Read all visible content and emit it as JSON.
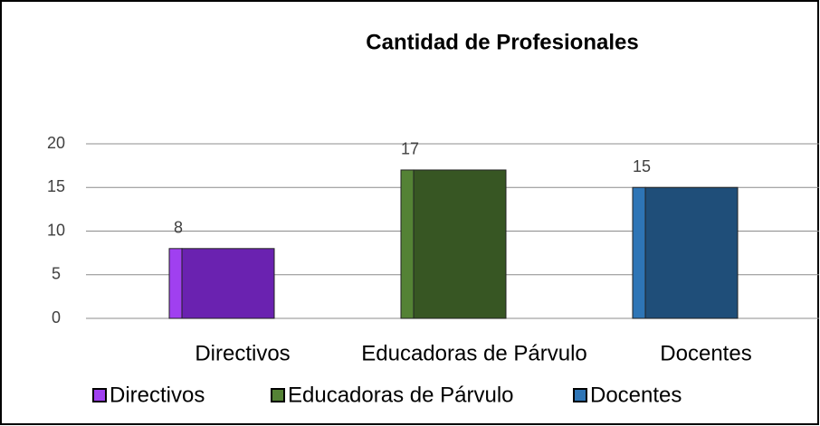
{
  "chart_data": {
    "type": "bar",
    "title": "Cantidad de Profesionales",
    "categories": [
      "Directivos",
      "Educadoras de Párvulo",
      "Docentes"
    ],
    "values": [
      8,
      17,
      15
    ],
    "colors": [
      "#6a22b0",
      "#375623",
      "#1f4e79"
    ],
    "side_colors": [
      "#a040f0",
      "#548235",
      "#2e75b6"
    ],
    "ylim": [
      0,
      20
    ],
    "yticks": [
      0,
      5,
      10,
      15,
      20
    ],
    "grid": true,
    "legend": "bottom"
  }
}
